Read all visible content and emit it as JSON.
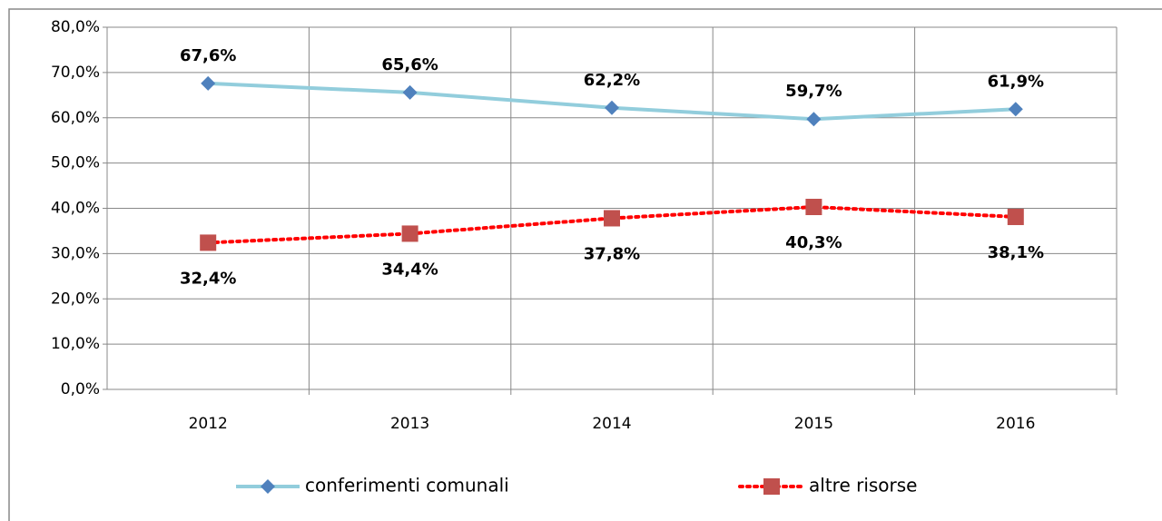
{
  "chart_data": {
    "type": "line",
    "categories": [
      "2012",
      "2013",
      "2014",
      "2015",
      "2016"
    ],
    "series": [
      {
        "name": "conferimenti comunali",
        "color": "#92CDDC",
        "marker_color": "#4F81BD",
        "marker": "diamond",
        "line_style": "solid",
        "values": [
          67.6,
          65.6,
          62.2,
          59.7,
          61.9
        ],
        "value_labels": [
          "67,6%",
          "65,6%",
          "62,2%",
          "59,7%",
          "61,9%"
        ]
      },
      {
        "name": "altre risorse",
        "color": "#FF0000",
        "marker_color": "#C0504D",
        "marker": "square",
        "line_style": "dotted",
        "values": [
          32.4,
          34.4,
          37.8,
          40.3,
          38.1
        ],
        "value_labels": [
          "32,4%",
          "34,4%",
          "37,8%",
          "40,3%",
          "38,1%"
        ]
      }
    ],
    "ylim": [
      0,
      80
    ],
    "yticks": [
      {
        "value": 0,
        "label": "0,0%"
      },
      {
        "value": 10,
        "label": "10,0%"
      },
      {
        "value": 20,
        "label": "20,0%"
      },
      {
        "value": 30,
        "label": "30,0%"
      },
      {
        "value": 40,
        "label": "40,0%"
      },
      {
        "value": 50,
        "label": "50,0%"
      },
      {
        "value": 60,
        "label": "60,0%"
      },
      {
        "value": 70,
        "label": "70,0%"
      },
      {
        "value": 80,
        "label": "80,0%"
      }
    ],
    "grid": true,
    "legend": "bottom"
  }
}
